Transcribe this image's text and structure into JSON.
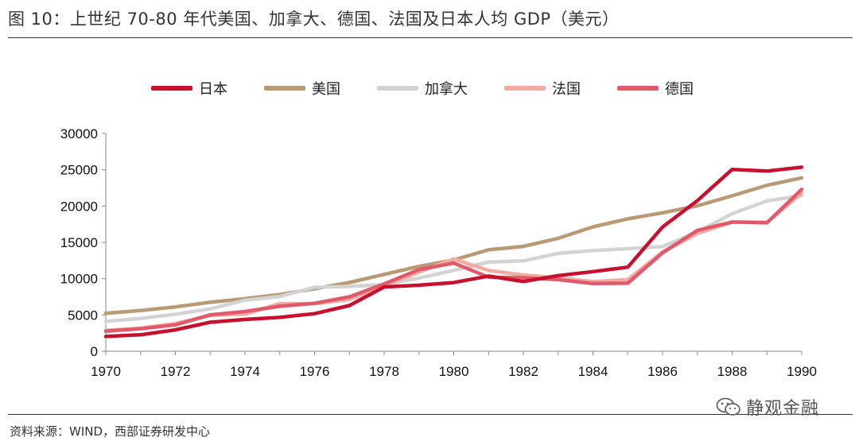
{
  "title": "图 10：上世纪 70-80 年代美国、加拿大、德国、法国及日本人均 GDP（美元）",
  "source": "资料来源：WIND，西部证券研发中心",
  "watermark": "静观金融",
  "chart_data": {
    "type": "line",
    "title": "图 10：上世纪 70-80 年代美国、加拿大、德国、法国及日本人均 GDP（美元）",
    "xlabel": "",
    "ylabel": "",
    "x": [
      1970,
      1971,
      1972,
      1973,
      1974,
      1975,
      1976,
      1977,
      1978,
      1979,
      1980,
      1981,
      1982,
      1983,
      1984,
      1985,
      1986,
      1987,
      1988,
      1989,
      1990
    ],
    "x_tick_labels": [
      "1970",
      "1972",
      "1974",
      "1976",
      "1978",
      "1980",
      "1982",
      "1984",
      "1986",
      "1988",
      "1990"
    ],
    "y_ticks": [
      0,
      5000,
      10000,
      15000,
      20000,
      25000,
      30000
    ],
    "y_tick_labels": [
      "0",
      "5000",
      "10000",
      "15000",
      "20000",
      "25000",
      "30000"
    ],
    "ylim": [
      0,
      30000
    ],
    "xlim": [
      1970,
      1990
    ],
    "grid": false,
    "legend_position": "top",
    "series": [
      {
        "name": "日本",
        "color": "#c8102e",
        "values": [
          2040,
          2270,
          2950,
          4000,
          4380,
          4660,
          5180,
          6300,
          8860,
          9100,
          9460,
          10360,
          9600,
          10420,
          10970,
          11580,
          17110,
          20750,
          25050,
          24820,
          25360
        ]
      },
      {
        "name": "美国",
        "color": "#b89a74",
        "values": [
          5230,
          5610,
          6110,
          6740,
          7240,
          7820,
          8610,
          9470,
          10590,
          11690,
          12580,
          13980,
          14440,
          15560,
          17130,
          18240,
          19070,
          20040,
          21420,
          22860,
          23890
        ]
      },
      {
        "name": "加拿大",
        "color": "#d3d3d3",
        "values": [
          4120,
          4520,
          5090,
          5840,
          7020,
          7540,
          8810,
          8930,
          9170,
          10080,
          11140,
          12300,
          12450,
          13480,
          13870,
          14130,
          14420,
          16420,
          18950,
          20720,
          21450
        ]
      },
      {
        "name": "法国",
        "color": "#f2aaa5",
        "values": [
          2860,
          3170,
          3810,
          4950,
          5110,
          6560,
          6550,
          7130,
          9020,
          10900,
          12710,
          11120,
          10500,
          10090,
          9590,
          9870,
          13690,
          16220,
          17800,
          17760,
          21790
        ]
      },
      {
        "name": "德国",
        "color": "#e05a6a",
        "values": [
          2760,
          3110,
          3640,
          5000,
          5470,
          6200,
          6600,
          7500,
          9270,
          11240,
          12140,
          10200,
          10130,
          9870,
          9330,
          9370,
          13550,
          16650,
          17800,
          17690,
          22310
        ]
      }
    ]
  }
}
